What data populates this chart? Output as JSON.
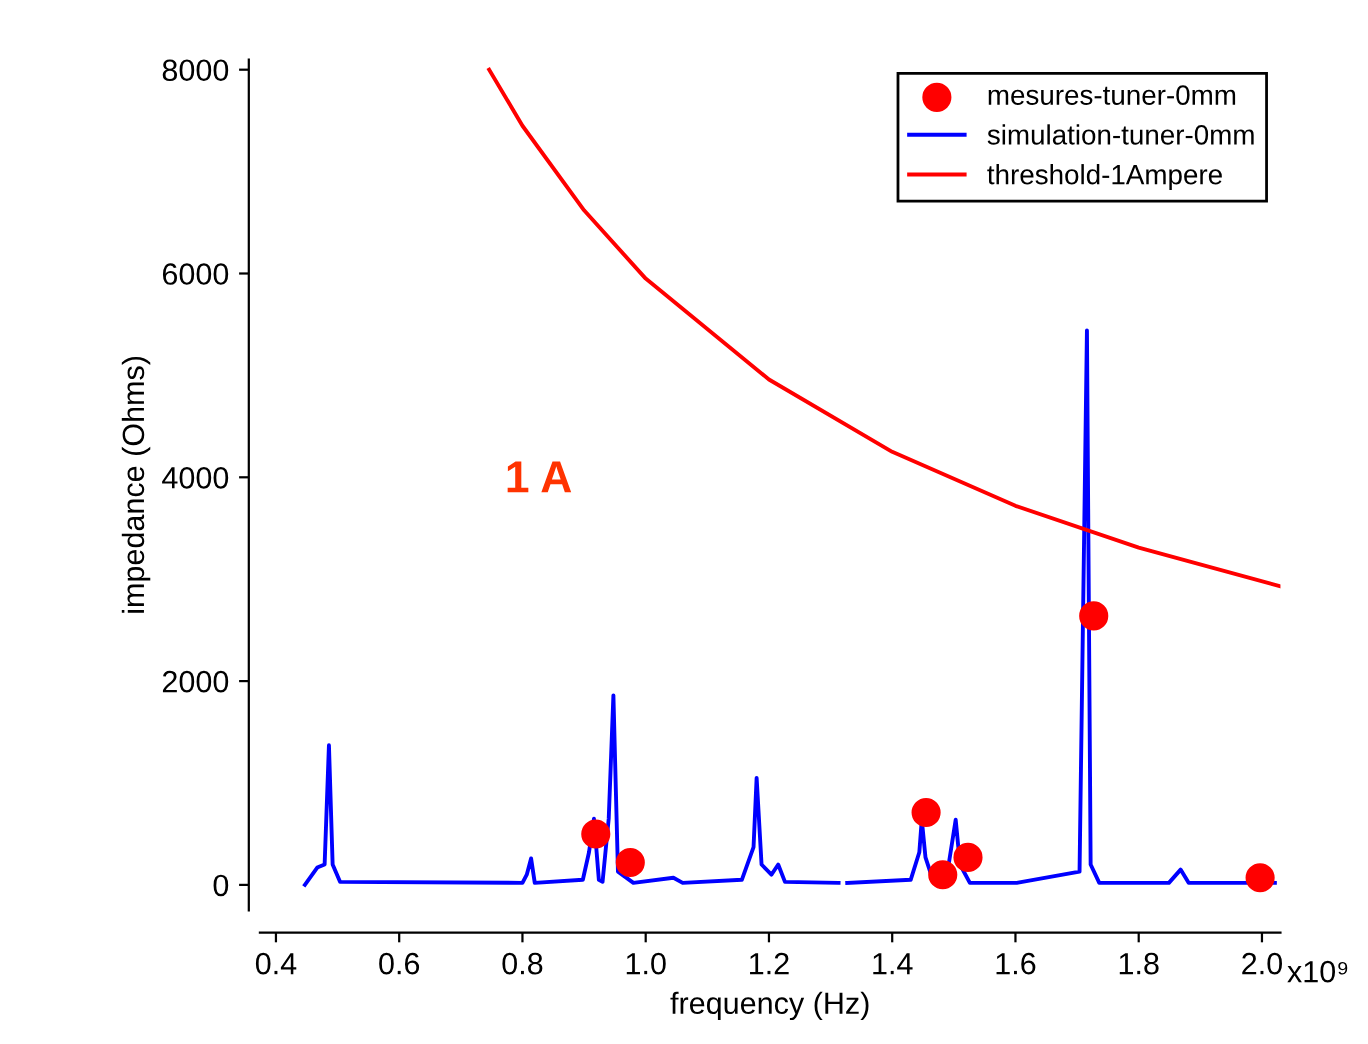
{
  "chart_data": {
    "type": "line",
    "xlabel": "frequency (Hz)",
    "ylabel": "impedance (Ohms)",
    "xlim": [
      0.374,
      2.03
    ],
    "ylim": [
      -250,
      8100
    ],
    "xticks": [
      0.4,
      0.6,
      0.8,
      {
        "value": 1,
        "label": "1.0"
      },
      1.2,
      1.4,
      1.6,
      1.8,
      {
        "value": 2,
        "label": "2.0"
      }
    ],
    "yticks": [
      0,
      2000,
      4000,
      6000,
      8000
    ],
    "grid": false,
    "legend": "top right",
    "annotations": [
      "1 A",
      "x10⁹"
    ],
    "series": [
      {
        "name": "mesures-tuner-0mm",
        "type": "scatter",
        "marker": "circle",
        "color": "#ff0000",
        "x": [
          0.919,
          0.975,
          1.455,
          1.482,
          1.523,
          1.727,
          1.997
        ],
        "values": [
          500,
          220,
          710,
          100,
          270,
          2640,
          70
        ]
      },
      {
        "name": "simulation-tuner-0mm",
        "line_style": "solid",
        "color": "#0000ff",
        "x": [
          0.447,
          0.467,
          0.479,
          0.486,
          0.492,
          0.504,
          0.8,
          0.807,
          0.814,
          0.82,
          0.898,
          0.908,
          0.916,
          0.924,
          0.93,
          0.94,
          0.9476,
          0.955,
          0.98,
          1.045,
          1.06,
          1.156,
          1.175,
          1.18,
          1.188,
          1.204,
          1.215,
          1.226,
          1.313,
          1.32,
          1.327,
          1.43,
          1.444,
          1.448,
          1.454,
          1.467,
          1.489,
          1.503,
          1.51,
          1.526,
          1.602,
          1.704,
          1.716,
          1.722,
          1.736,
          1.849,
          1.868,
          1.881,
          2.021
        ],
        "values": [
          0,
          170,
          200,
          1370,
          200,
          30,
          20,
          100,
          260,
          20,
          50,
          320,
          650,
          50,
          30,
          650,
          1860,
          130,
          20,
          70,
          20,
          50,
          370,
          1050,
          200,
          100,
          200,
          30,
          20,
          null,
          20,
          50,
          320,
          640,
          270,
          30,
          100,
          640,
          200,
          20,
          20,
          130,
          5440,
          200,
          20,
          20,
          150,
          20,
          20
        ]
      },
      {
        "name": "threshold-1Ampere",
        "line_style": "solid",
        "color": "#ff0000",
        "x": [
          0.746,
          0.8,
          0.9,
          1.0,
          1.2,
          1.4,
          1.6,
          1.8,
          2.03
        ],
        "values": [
          8000,
          7450,
          6620,
          5950,
          4960,
          4250,
          3720,
          3310,
          2930
        ]
      }
    ]
  }
}
